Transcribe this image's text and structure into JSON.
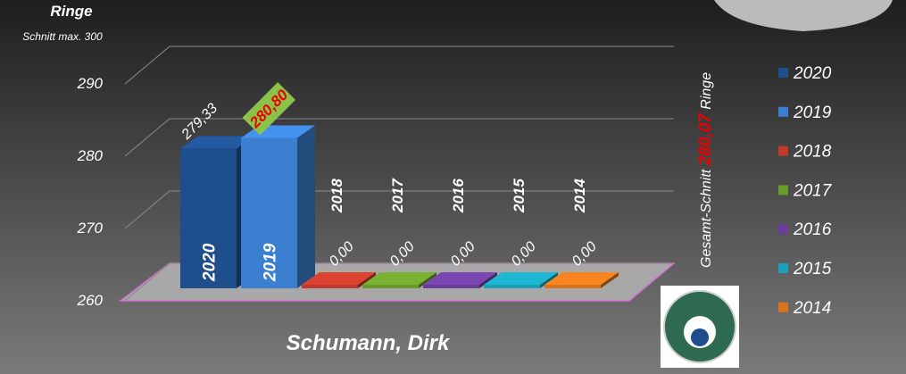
{
  "chart_data": {
    "type": "bar3d",
    "title": "Ringe",
    "subtitle": "Schnitt max. 300",
    "x_label": "Schumann, Dirk",
    "categories": [
      "2020",
      "2019",
      "2018",
      "2017",
      "2016",
      "2015",
      "2014"
    ],
    "values": [
      279.33,
      280.8,
      0,
      0,
      0,
      0,
      0
    ],
    "value_labels": [
      "279,33",
      "280,80",
      "0,00",
      "0,00",
      "0,00",
      "0,00",
      "0,00"
    ],
    "colors": [
      "#1f4e8c",
      "#3a7fd0",
      "#c0392b",
      "#6a9a2a",
      "#6a3d9a",
      "#1aa0b8",
      "#d9741c"
    ],
    "ylim": [
      260,
      290
    ],
    "yticks": [
      260,
      270,
      280,
      290
    ],
    "grid": true,
    "legend": "right",
    "annotation": {
      "text_before": "Gesamt-Schnitt",
      "value": 280.07,
      "value_label": "280,07",
      "text_after": "Ringe"
    }
  }
}
